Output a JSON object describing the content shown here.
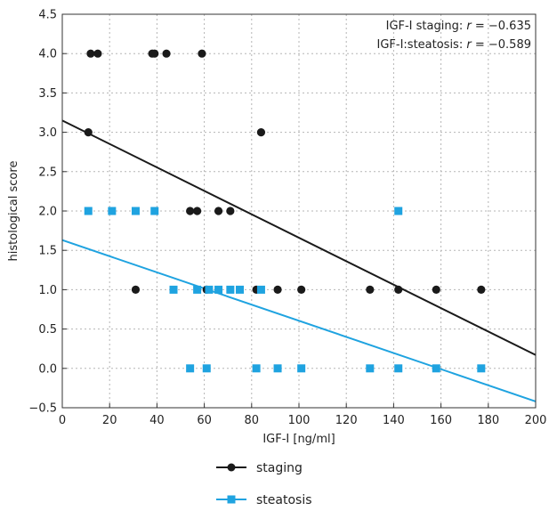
{
  "chart_data": {
    "type": "scatter",
    "xlabel": "IGF-I [ng/ml]",
    "ylabel": "histological score",
    "xlim": [
      0,
      200
    ],
    "ylim": [
      -0.5,
      4.5
    ],
    "xticks": [
      "0",
      "20",
      "40",
      "60",
      "80",
      "100",
      "120",
      "140",
      "160",
      "180",
      "200"
    ],
    "yticks": [
      "−0.5",
      "0.0",
      "0.5",
      "1.0",
      "1.5",
      "2.0",
      "2.5",
      "3.0",
      "3.5",
      "4.0",
      "4.5"
    ],
    "grid": true,
    "legend_position": "bottom",
    "annotations": [
      {
        "prefix": "IGF-I staging: ",
        "r": "r",
        "suffix": " = −0.635"
      },
      {
        "prefix": "IGF-I:steatosis: ",
        "r": "r",
        "suffix": " = −0.589"
      }
    ],
    "series": [
      {
        "name": "staging",
        "color": "#1a1a1a",
        "marker": "circle",
        "points": [
          [
            11,
            3.0
          ],
          [
            12,
            4.0
          ],
          [
            15,
            4.0
          ],
          [
            31,
            1.0
          ],
          [
            38,
            4.0
          ],
          [
            39,
            4.0
          ],
          [
            44,
            4.0
          ],
          [
            54,
            2.0
          ],
          [
            57,
            2.0
          ],
          [
            59,
            4.0
          ],
          [
            61,
            1.0
          ],
          [
            66,
            2.0
          ],
          [
            71,
            2.0
          ],
          [
            82,
            1.0
          ],
          [
            84,
            3.0
          ],
          [
            91,
            1.0
          ],
          [
            101,
            1.0
          ],
          [
            130,
            1.0
          ],
          [
            142,
            1.0
          ],
          [
            158,
            1.0
          ],
          [
            177,
            1.0
          ]
        ],
        "fit_line": {
          "x": [
            0,
            200
          ],
          "y": [
            3.15,
            0.17
          ]
        }
      },
      {
        "name": "steatosis",
        "color": "#1fa3e0",
        "marker": "square",
        "points": [
          [
            11,
            2.0
          ],
          [
            21,
            2.0
          ],
          [
            31,
            2.0
          ],
          [
            39,
            2.0
          ],
          [
            47,
            1.0
          ],
          [
            54,
            0.0
          ],
          [
            57,
            1.0
          ],
          [
            61,
            0.0
          ],
          [
            62,
            1.0
          ],
          [
            66,
            1.0
          ],
          [
            71,
            1.0
          ],
          [
            75,
            1.0
          ],
          [
            82,
            0.0
          ],
          [
            84,
            1.0
          ],
          [
            91,
            0.0
          ],
          [
            101,
            0.0
          ],
          [
            130,
            0.0
          ],
          [
            142,
            2.0
          ],
          [
            142,
            0.0
          ],
          [
            158,
            0.0
          ],
          [
            177,
            0.0
          ]
        ],
        "fit_line": {
          "x": [
            0,
            200
          ],
          "y": [
            1.63,
            -0.42
          ]
        }
      }
    ]
  }
}
